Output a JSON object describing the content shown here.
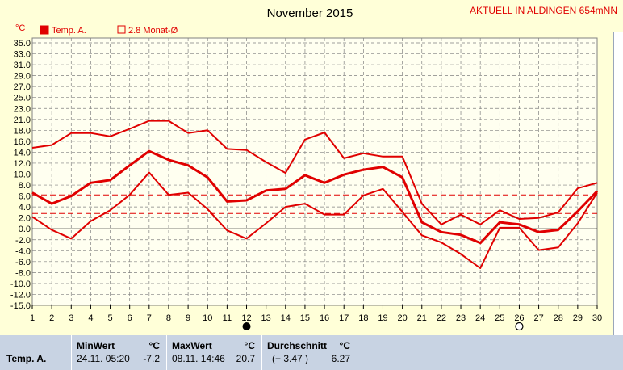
{
  "header": {
    "title": "November 2015",
    "location": "AKTUELL IN ALDINGEN 654mNN",
    "unit": "°C"
  },
  "legend": {
    "series_label": "Temp. A.",
    "avg_label": "2.8 Monat-Ø"
  },
  "colors": {
    "series": "#e00000",
    "dashed": "#e00000",
    "background": "#ffffd8",
    "plot_bg": "#fffff0",
    "grid": "#808080",
    "stats_bg": "#c8d3e3"
  },
  "chart_data": {
    "type": "line",
    "title": "November 2015",
    "ylabel": "°C",
    "xlabel": "",
    "ylim": [
      -15,
      35
    ],
    "xlim": [
      1,
      30
    ],
    "yticks": [
      35.0,
      33.0,
      31.0,
      29.0,
      27.0,
      25.0,
      23.0,
      21.0,
      18.0,
      16.0,
      14.0,
      12.0,
      10.0,
      8.0,
      6.0,
      4.0,
      2.0,
      0.0,
      -2.0,
      -4.0,
      -6.0,
      -8.0,
      -10.0,
      -12.0,
      -15.0
    ],
    "x": [
      1,
      2,
      3,
      4,
      5,
      6,
      7,
      8,
      9,
      10,
      11,
      12,
      13,
      14,
      15,
      16,
      17,
      18,
      19,
      20,
      21,
      22,
      23,
      24,
      25,
      26,
      27,
      28,
      29,
      30
    ],
    "series": [
      {
        "role": "max",
        "values": [
          14.8,
          15.3,
          17.5,
          17.5,
          16.9,
          18.4,
          20.6,
          20.6,
          17.5,
          18.0,
          14.6,
          14.4,
          12.2,
          10.2,
          16.3,
          17.6,
          12.9,
          13.8,
          13.2,
          13.2,
          4.6,
          0.8,
          2.6,
          0.8,
          3.4,
          1.8,
          2.0,
          3.0,
          7.4,
          8.4
        ]
      },
      {
        "role": "mean",
        "values": [
          6.6,
          4.6,
          6.0,
          8.4,
          8.9,
          11.6,
          14.2,
          12.6,
          11.6,
          9.4,
          5.0,
          5.2,
          7.0,
          7.3,
          9.8,
          8.4,
          9.9,
          10.8,
          11.3,
          9.4,
          1.2,
          -0.6,
          -1.1,
          -2.6,
          1.2,
          0.8,
          -0.6,
          -0.2,
          3.2,
          6.9
        ]
      },
      {
        "role": "min",
        "values": [
          2.2,
          -0.2,
          -1.8,
          1.4,
          3.4,
          6.2,
          10.3,
          6.2,
          6.6,
          3.6,
          -0.3,
          -1.8,
          1.0,
          4.0,
          4.6,
          2.6,
          2.6,
          6.1,
          7.3,
          3.1,
          -1.2,
          -2.5,
          -4.6,
          -7.2,
          0.2,
          0.2,
          -3.9,
          -3.4,
          1.0,
          6.6
        ]
      }
    ],
    "reference_lines": [
      6.2,
      2.8
    ],
    "moon_markers": [
      {
        "x": 12,
        "kind": "new"
      },
      {
        "x": 26,
        "kind": "full"
      }
    ],
    "grid": true
  },
  "stats": {
    "row_label": "Temp. A.",
    "min": {
      "header": "MinWert",
      "unit": "°C",
      "datetime": "24.11.  05:20",
      "value": "-7.2"
    },
    "max": {
      "header": "MaxWert",
      "unit": "°C",
      "datetime": "08.11.  14:46",
      "value": "20.7"
    },
    "avg": {
      "header": "Durchschnitt",
      "unit": "°C",
      "delta": "(+ 3.47 )",
      "value": "6.27"
    }
  }
}
